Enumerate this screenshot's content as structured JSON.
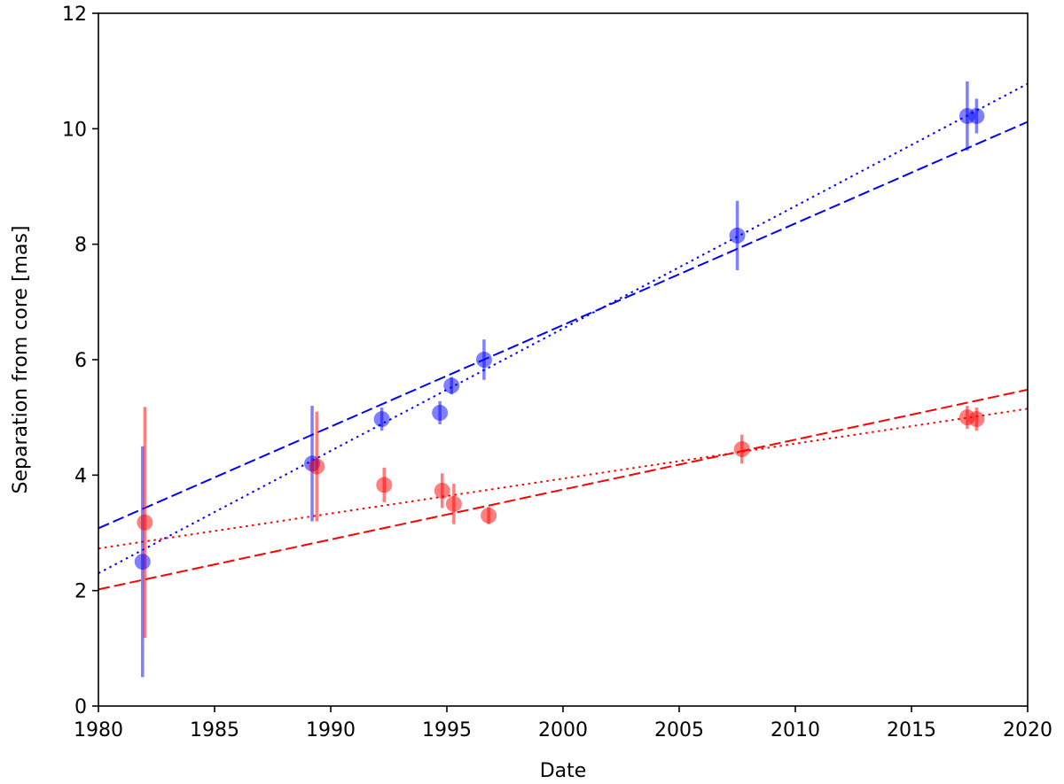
{
  "chart_data": {
    "type": "scatter",
    "title": "",
    "xlabel": "Date",
    "ylabel": "Separation from core [mas]",
    "xlim": [
      1980,
      2020
    ],
    "ylim": [
      0,
      12
    ],
    "xticks": [
      1980,
      1985,
      1990,
      1995,
      2000,
      2005,
      2010,
      2015,
      2020
    ],
    "yticks": [
      0,
      2,
      4,
      6,
      8,
      10,
      12
    ],
    "grid": false,
    "legend": "none",
    "series": [
      {
        "color": "#0000ff",
        "points": [
          {
            "x": 1981.9,
            "y": 2.5,
            "err": 2.0
          },
          {
            "x": 1989.2,
            "y": 4.2,
            "err": 1.0
          },
          {
            "x": 1992.2,
            "y": 4.97,
            "err": 0.2
          },
          {
            "x": 1994.7,
            "y": 5.08,
            "err": 0.2
          },
          {
            "x": 1995.2,
            "y": 5.55,
            "err": 0.15
          },
          {
            "x": 1996.6,
            "y": 6.0,
            "err": 0.35
          },
          {
            "x": 2007.5,
            "y": 8.15,
            "err": 0.6
          },
          {
            "x": 2017.4,
            "y": 10.22,
            "err": 0.6
          },
          {
            "x": 2017.8,
            "y": 10.22,
            "err": 0.3
          }
        ],
        "fits": [
          {
            "style": "dashed",
            "x": [
              1980,
              2020
            ],
            "y": [
              3.08,
              10.12
            ]
          },
          {
            "style": "dotted",
            "x": [
              1980,
              2020
            ],
            "y": [
              2.3,
              10.78
            ]
          }
        ]
      },
      {
        "color": "#ff0000",
        "points": [
          {
            "x": 1982.0,
            "y": 3.18,
            "err": 2.0
          },
          {
            "x": 1989.4,
            "y": 4.15,
            "err": 0.95
          },
          {
            "x": 1992.3,
            "y": 3.83,
            "err": 0.3
          },
          {
            "x": 1994.8,
            "y": 3.73,
            "err": 0.3
          },
          {
            "x": 1995.3,
            "y": 3.5,
            "err": 0.35
          },
          {
            "x": 1996.8,
            "y": 3.3,
            "err": 0.15
          },
          {
            "x": 2007.7,
            "y": 4.45,
            "err": 0.25
          },
          {
            "x": 2017.4,
            "y": 5.0,
            "err": 0.2
          },
          {
            "x": 2017.8,
            "y": 4.97,
            "err": 0.2
          }
        ],
        "fits": [
          {
            "style": "dashed",
            "x": [
              1980,
              2020
            ],
            "y": [
              2.02,
              5.48
            ]
          },
          {
            "style": "dotted",
            "x": [
              1980,
              2020
            ],
            "y": [
              2.73,
              5.15
            ]
          }
        ]
      }
    ]
  }
}
